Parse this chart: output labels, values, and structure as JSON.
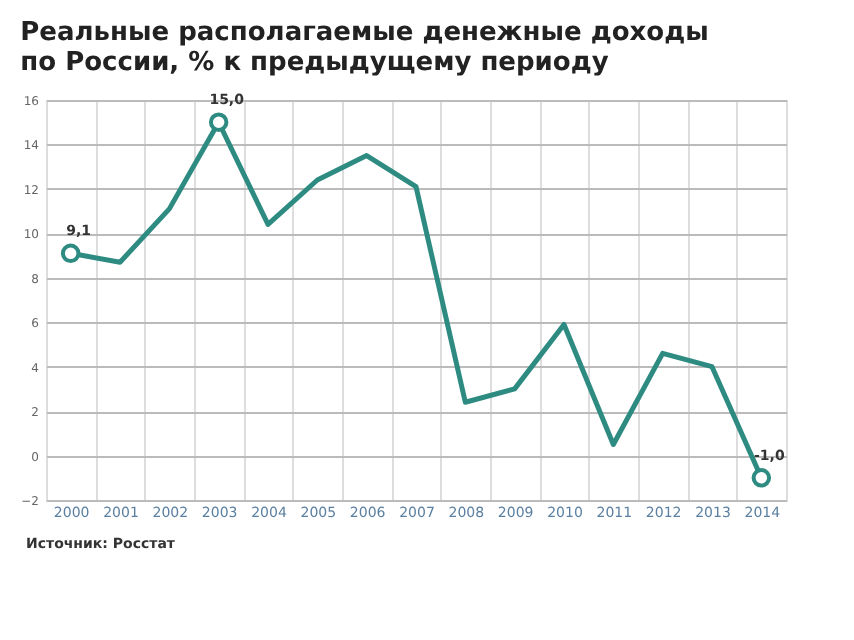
{
  "chart_data": {
    "type": "line",
    "title": "Реальные располагаемые денежные доходы\nпо России, % к предыдущему периоду",
    "categories": [
      "2000",
      "2001",
      "2002",
      "2003",
      "2004",
      "2005",
      "2006",
      "2007",
      "2008",
      "2009",
      "2010",
      "2011",
      "2012",
      "2013",
      "2014"
    ],
    "series": [
      {
        "color": "#2e8b82",
        "values": [
          9.1,
          8.7,
          11.1,
          15.0,
          10.4,
          12.4,
          13.5,
          12.1,
          2.4,
          3.0,
          5.9,
          0.5,
          4.6,
          4.0,
          -1.0
        ],
        "value_labels": [
          "9,1",
          null,
          null,
          "15,0",
          null,
          null,
          null,
          null,
          null,
          null,
          null,
          null,
          null,
          null,
          "-1,0"
        ]
      }
    ],
    "ylim": [
      -2,
      16
    ],
    "yticks": [
      -2,
      0,
      2,
      4,
      6,
      8,
      10,
      12,
      14,
      16
    ],
    "grid": true,
    "line_style": "solid",
    "annotations": [
      "Источник: Росстат"
    ]
  }
}
